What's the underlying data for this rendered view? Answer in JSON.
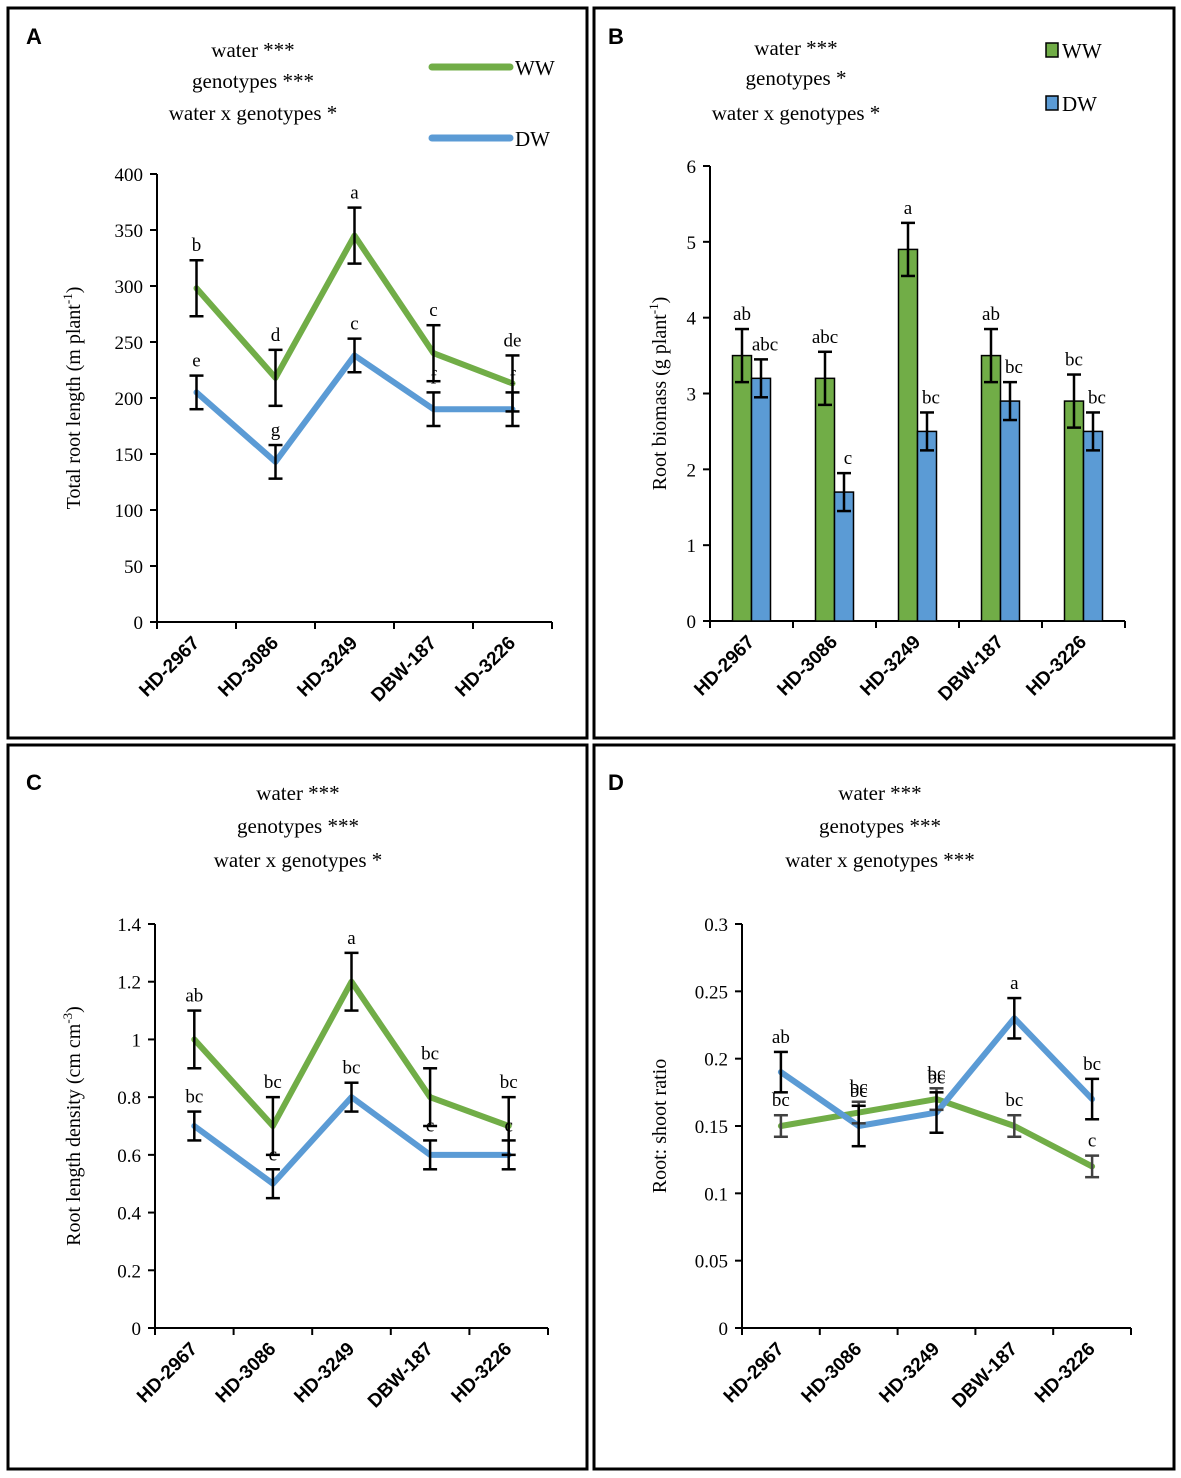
{
  "figure": {
    "colors": {
      "ww": "#71ad47",
      "dw": "#5b9bd5",
      "axis": "#000000",
      "errbar_gray": "#404040"
    },
    "legend": {
      "ww": "WW",
      "dw": "DW"
    }
  },
  "chart_data": [
    {
      "panel": "A",
      "type": "line",
      "stats": [
        "water ***",
        "genotypes ***",
        "water x genotypes *"
      ],
      "categories": [
        "HD-2967",
        "HD-3086",
        "HD-3249",
        "DBW-187",
        "HD-3226"
      ],
      "ylabel": "Total root length (m plant",
      "ylabel_sup": "-1",
      "ylabel_end": ")",
      "ylim": [
        0,
        400
      ],
      "yticks": [
        0,
        50,
        100,
        150,
        200,
        250,
        300,
        350,
        400
      ],
      "ytick_labels": [
        "0",
        "50",
        "100",
        "150",
        "200",
        "250",
        "300",
        "350",
        "400"
      ],
      "series": [
        {
          "name": "WW",
          "values": [
            298,
            218,
            345,
            240,
            213
          ],
          "errors": [
            25,
            25,
            25,
            25,
            25
          ],
          "letters": [
            "b",
            "d",
            "a",
            "c",
            "de"
          ]
        },
        {
          "name": "DW",
          "values": [
            205,
            143,
            238,
            190,
            190
          ],
          "errors": [
            15,
            15,
            15,
            15,
            15
          ],
          "letters": [
            "e",
            "g",
            "c",
            "f",
            "f"
          ]
        }
      ]
    },
    {
      "panel": "B",
      "type": "bar",
      "stats": [
        "water ***",
        "genotypes *",
        "water x genotypes *"
      ],
      "categories": [
        "HD-2967",
        "HD-3086",
        "HD-3249",
        "DBW-187",
        "HD-3226"
      ],
      "ylabel": "Root biomass (g plant",
      "ylabel_sup": "-1",
      "ylabel_end": ")",
      "ylim": [
        0,
        6
      ],
      "yticks": [
        0,
        1,
        2,
        3,
        4,
        5,
        6
      ],
      "ytick_labels": [
        "0",
        "1",
        "2",
        "3",
        "4",
        "5",
        "6"
      ],
      "series": [
        {
          "name": "WW",
          "values": [
            3.5,
            3.2,
            4.9,
            3.5,
            2.9
          ],
          "errors": [
            0.35,
            0.35,
            0.35,
            0.35,
            0.35
          ],
          "letters": [
            "ab",
            "abc",
            "a",
            "ab",
            "bc"
          ]
        },
        {
          "name": "DW",
          "values": [
            3.2,
            1.7,
            2.5,
            2.9,
            2.5
          ],
          "errors": [
            0.25,
            0.25,
            0.25,
            0.25,
            0.25
          ],
          "letters": [
            "abc",
            "c",
            "bc",
            "bc",
            "bc"
          ]
        }
      ]
    },
    {
      "panel": "C",
      "type": "line",
      "stats": [
        "water ***",
        "genotypes ***",
        "water x genotypes *"
      ],
      "categories": [
        "HD-2967",
        "HD-3086",
        "HD-3249",
        "DBW-187",
        "HD-3226"
      ],
      "ylabel": "Root length density (cm cm",
      "ylabel_sup": "-3",
      "ylabel_end": ")",
      "ylim": [
        0,
        1.4
      ],
      "yticks": [
        0,
        0.2,
        0.4,
        0.6,
        0.8,
        1.0,
        1.2,
        1.4
      ],
      "ytick_labels": [
        "0",
        "0.2",
        "0.4",
        "0.6",
        "0.8",
        "1",
        "1.2",
        "1.4"
      ],
      "series": [
        {
          "name": "WW",
          "values": [
            1.0,
            0.7,
            1.2,
            0.8,
            0.7
          ],
          "errors": [
            0.1,
            0.1,
            0.1,
            0.1,
            0.1
          ],
          "letters": [
            "ab",
            "bc",
            "a",
            "bc",
            "bc"
          ]
        },
        {
          "name": "DW",
          "values": [
            0.7,
            0.5,
            0.8,
            0.6,
            0.6
          ],
          "errors": [
            0.05,
            0.05,
            0.05,
            0.05,
            0.05
          ],
          "letters": [
            "bc",
            "c",
            "bc",
            "c",
            "c"
          ]
        }
      ]
    },
    {
      "panel": "D",
      "type": "line",
      "stats": [
        "water ***",
        "genotypes ***",
        "water x genotypes ***"
      ],
      "categories": [
        "HD-2967",
        "HD-3086",
        "HD-3249",
        "DBW-187",
        "HD-3226"
      ],
      "ylabel": "Root: shoot ratio",
      "ylabel_sup": "",
      "ylabel_end": "",
      "ylim": [
        0,
        0.3
      ],
      "yticks": [
        0,
        0.05,
        0.1,
        0.15,
        0.2,
        0.25,
        0.3
      ],
      "ytick_labels": [
        "0",
        "0.05",
        "0.1",
        "0.15",
        "0.2",
        "0.25",
        "0.3"
      ],
      "series": [
        {
          "name": "WW",
          "values": [
            0.15,
            0.16,
            0.17,
            0.15,
            0.12
          ],
          "errors": [
            0.008,
            0.008,
            0.008,
            0.008,
            0.008
          ],
          "letters": [
            "bc",
            "bc",
            "bc",
            "bc",
            "c"
          ],
          "errbar_color": "gray"
        },
        {
          "name": "DW",
          "values": [
            0.19,
            0.15,
            0.16,
            0.23,
            0.17
          ],
          "errors": [
            0.015,
            0.015,
            0.015,
            0.015,
            0.015
          ],
          "letters": [
            "ab",
            "bc",
            "bc",
            "a",
            "bc"
          ]
        }
      ]
    }
  ]
}
